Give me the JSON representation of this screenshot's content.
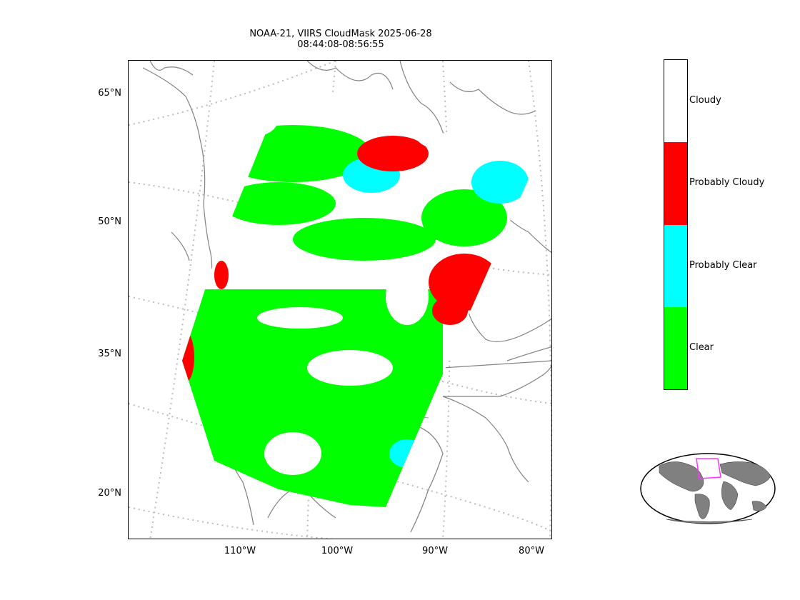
{
  "title": "NOAA-21, VIIRS CloudMask 2025-06-28\n08:44:08-08:56:55",
  "lat_ticks": [
    "65°N",
    "50°N",
    "35°N",
    "20°N"
  ],
  "lon_ticks": [
    "110°W",
    "100°W",
    "90°W",
    "80°W"
  ],
  "colorbar": {
    "categories": [
      {
        "label": "Cloudy",
        "color": "#ffffff"
      },
      {
        "label": "Probably Cloudy",
        "color": "#ff0000"
      },
      {
        "label": "Probably Clear",
        "color": "#00ffff"
      },
      {
        "label": "Clear",
        "color": "#00ff00"
      }
    ]
  },
  "colors": {
    "coastline": "#808080",
    "graticule": "#bbbbbb",
    "globe_land": "#808080",
    "inset_box": "#ff33ff"
  }
}
